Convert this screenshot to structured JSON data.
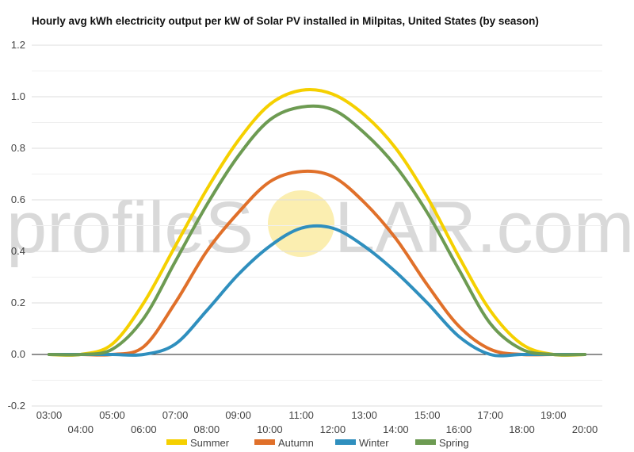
{
  "watermark": {
    "text_left": "profileS",
    "text_right": "LAR.com",
    "sun_color": "#fbeeb0"
  },
  "chart_data": {
    "type": "line",
    "title": "Hourly avg kWh electricity output per kW of Solar PV installed in Milpitas, United States (by season)",
    "xlabel": "",
    "ylabel": "",
    "ylim": [
      -0.2,
      1.2
    ],
    "yticks": [
      "-0.2",
      "0.0",
      "0.2",
      "0.4",
      "0.6",
      "0.8",
      "1.0",
      "1.2"
    ],
    "xlim": [
      3,
      20
    ],
    "xticks": [
      "03:00",
      "04:00",
      "05:00",
      "06:00",
      "07:00",
      "08:00",
      "09:00",
      "10:00",
      "11:00",
      "12:00",
      "13:00",
      "14:00",
      "15:00",
      "16:00",
      "17:00",
      "18:00",
      "19:00",
      "20:00"
    ],
    "grid": true,
    "legend_position": "bottom",
    "series": [
      {
        "name": "Summer",
        "color": "#f5d000",
        "x": [
          3,
          4,
          5,
          6,
          7,
          8,
          9,
          10,
          11,
          12,
          13,
          14,
          15,
          16,
          17,
          18,
          19,
          20
        ],
        "values": [
          0.0,
          0.0,
          0.04,
          0.2,
          0.42,
          0.64,
          0.83,
          0.97,
          1.025,
          1.01,
          0.93,
          0.8,
          0.61,
          0.38,
          0.17,
          0.04,
          0.0,
          0.0
        ]
      },
      {
        "name": "Autumn",
        "color": "#e0702a",
        "x": [
          3,
          4,
          5,
          6,
          7,
          8,
          9,
          10,
          11,
          12,
          13,
          14,
          15,
          16,
          17,
          18,
          19,
          20
        ],
        "values": [
          0.0,
          0.0,
          0.0,
          0.03,
          0.2,
          0.4,
          0.55,
          0.67,
          0.71,
          0.69,
          0.59,
          0.45,
          0.27,
          0.11,
          0.02,
          0.0,
          0.0,
          0.0
        ]
      },
      {
        "name": "Winter",
        "color": "#2f8fbe",
        "x": [
          3,
          4,
          5,
          6,
          7,
          8,
          9,
          10,
          11,
          12,
          13,
          14,
          15,
          16,
          17,
          18,
          19,
          20
        ],
        "values": [
          0.0,
          0.0,
          0.0,
          0.0,
          0.04,
          0.17,
          0.31,
          0.42,
          0.49,
          0.49,
          0.42,
          0.32,
          0.2,
          0.07,
          0.0,
          0.0,
          0.0,
          0.0
        ]
      },
      {
        "name": "Spring",
        "color": "#6d9b52",
        "x": [
          3,
          4,
          5,
          6,
          7,
          8,
          9,
          10,
          11,
          12,
          13,
          14,
          15,
          16,
          17,
          18,
          19,
          20
        ],
        "values": [
          0.0,
          0.0,
          0.02,
          0.14,
          0.36,
          0.58,
          0.77,
          0.91,
          0.96,
          0.95,
          0.86,
          0.73,
          0.55,
          0.33,
          0.12,
          0.02,
          0.0,
          0.0
        ]
      }
    ]
  }
}
